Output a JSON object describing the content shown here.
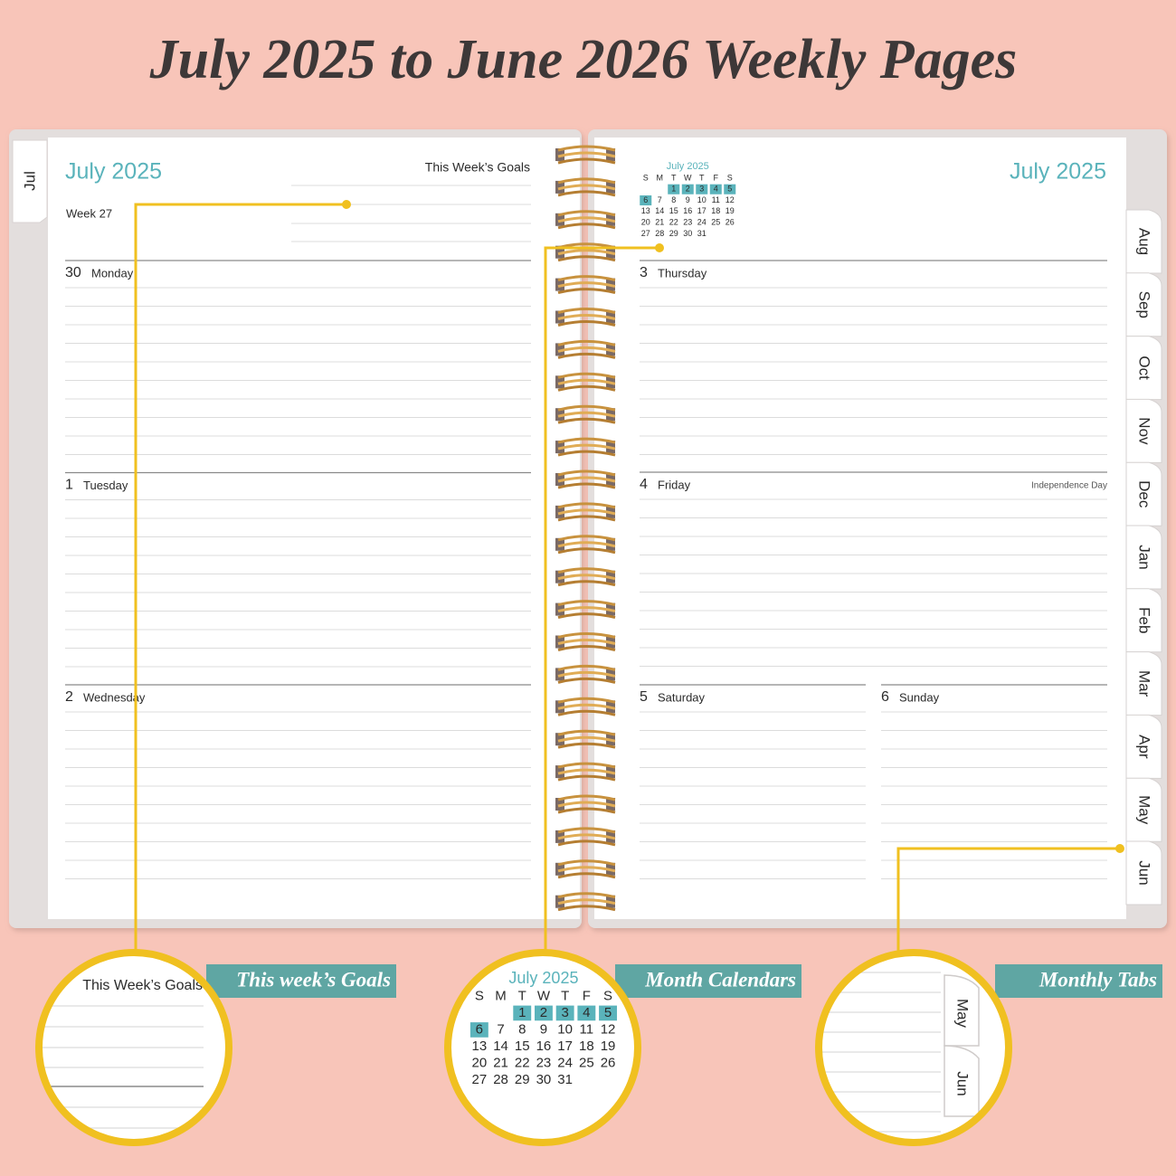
{
  "header": {
    "title": "July 2025 to June 2026 Weekly Pages"
  },
  "left_page": {
    "tab": "Jul",
    "month_title": "July 2025",
    "goals_label": "This Week’s Goals",
    "week": "Week 27",
    "days": [
      {
        "date": 30,
        "name": "Monday"
      },
      {
        "date": 1,
        "name": "Tuesday"
      },
      {
        "date": 2,
        "name": "Wednesday"
      }
    ]
  },
  "right_page": {
    "month_title": "July 2025",
    "mini_calendar": {
      "title": "July 2025",
      "weekdays": [
        "S",
        "M",
        "T",
        "W",
        "T",
        "F",
        "S"
      ],
      "weeks": [
        [
          null,
          null,
          1,
          2,
          3,
          4,
          5
        ],
        [
          6,
          7,
          8,
          9,
          10,
          11,
          12
        ],
        [
          13,
          14,
          15,
          16,
          17,
          18,
          19
        ],
        [
          20,
          21,
          22,
          23,
          24,
          25,
          26
        ],
        [
          27,
          28,
          29,
          30,
          31,
          null,
          null
        ]
      ],
      "highlighted_days": [
        1,
        2,
        3,
        4,
        5,
        6
      ],
      "highlight_color": "#5ab3bb"
    },
    "days": [
      {
        "date": 3,
        "name": "Thursday"
      },
      {
        "date": 4,
        "name": "Friday",
        "note": "Independence Day"
      },
      {
        "date": 5,
        "name": "Saturday"
      },
      {
        "date": 6,
        "name": "Sunday"
      }
    ],
    "tabs": [
      "Aug",
      "Sep",
      "Oct",
      "Nov",
      "Dec",
      "Jan",
      "Feb",
      "Mar",
      "Apr",
      "May",
      "Jun"
    ]
  },
  "callouts": [
    {
      "label": "This week’s Goals"
    },
    {
      "label": "Month Calendars"
    },
    {
      "label": "Monthly Tabs"
    }
  ]
}
